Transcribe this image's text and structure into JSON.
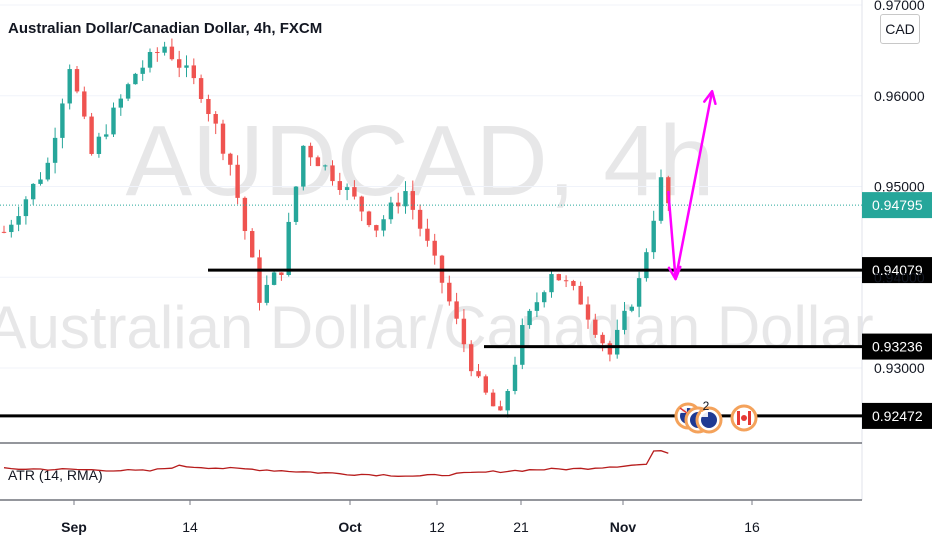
{
  "header": {
    "title": "Australian Dollar/Canadian Dollar, 4h, FXCM",
    "currency": "CAD"
  },
  "watermark": {
    "symbol": "AUDCAD, 4h",
    "name": "Australian Dollar/Canadian Dollar"
  },
  "indicator": {
    "label": "ATR (14, RMA)"
  },
  "events": {
    "badge_count": "2"
  },
  "colors": {
    "up": "#26a69a",
    "down": "#ef5350",
    "arrow": "#ff00ff",
    "atr": "#b71c1c",
    "level": "#000000"
  },
  "chart_data": {
    "type": "candlestick",
    "x_ticks": [
      "Sep",
      "14",
      "Oct",
      "12",
      "21",
      "Nov",
      "16"
    ],
    "y_ticks": [
      0.93,
      0.94,
      0.95,
      0.96,
      0.97
    ],
    "y_tick_labels": [
      "0.93000",
      "0.94000",
      "0.95000",
      "0.96000",
      "0.97000"
    ],
    "ylim": [
      0.9225,
      0.9705
    ],
    "current_price": 0.94795,
    "current_price_label": "0.94795",
    "horizontal_levels": [
      {
        "value": 0.94079,
        "label": "0.94079"
      },
      {
        "value": 0.93236,
        "label": "0.93236"
      },
      {
        "value": 0.92472,
        "label": "0.92472"
      }
    ],
    "close_path": [
      [
        0,
        0.945
      ],
      [
        6,
        0.9525
      ],
      [
        9,
        0.9635
      ],
      [
        12,
        0.9535
      ],
      [
        18,
        0.9625
      ],
      [
        22,
        0.9655
      ],
      [
        27,
        0.9605
      ],
      [
        31,
        0.9525
      ],
      [
        35,
        0.9378
      ],
      [
        38,
        0.941
      ],
      [
        41,
        0.9545
      ],
      [
        46,
        0.9505
      ],
      [
        51,
        0.9455
      ],
      [
        55,
        0.9495
      ],
      [
        60,
        0.9395
      ],
      [
        65,
        0.9282
      ],
      [
        68,
        0.9245
      ],
      [
        71,
        0.934
      ],
      [
        75,
        0.9408
      ],
      [
        79,
        0.9375
      ],
      [
        83,
        0.9315
      ],
      [
        87,
        0.9395
      ],
      [
        90,
        0.9505
      ],
      [
        91,
        0.948
      ]
    ],
    "projection": {
      "points": [
        [
          91,
          0.9495
        ],
        [
          92,
          0.9398
        ],
        [
          97,
          0.9605
        ]
      ]
    },
    "atr_path": [
      [
        0,
        0.62
      ],
      [
        10,
        0.6
      ],
      [
        20,
        0.57
      ],
      [
        24,
        0.68
      ],
      [
        30,
        0.63
      ],
      [
        35,
        0.6
      ],
      [
        41,
        0.55
      ],
      [
        47,
        0.5
      ],
      [
        52,
        0.48
      ],
      [
        57,
        0.45
      ],
      [
        62,
        0.5
      ],
      [
        67,
        0.55
      ],
      [
        73,
        0.6
      ],
      [
        79,
        0.62
      ],
      [
        84,
        0.68
      ],
      [
        88,
        0.72
      ],
      [
        89,
        1.0
      ],
      [
        90,
        1.05
      ],
      [
        91,
        0.98
      ],
      [
        92,
        0.95
      ]
    ]
  }
}
